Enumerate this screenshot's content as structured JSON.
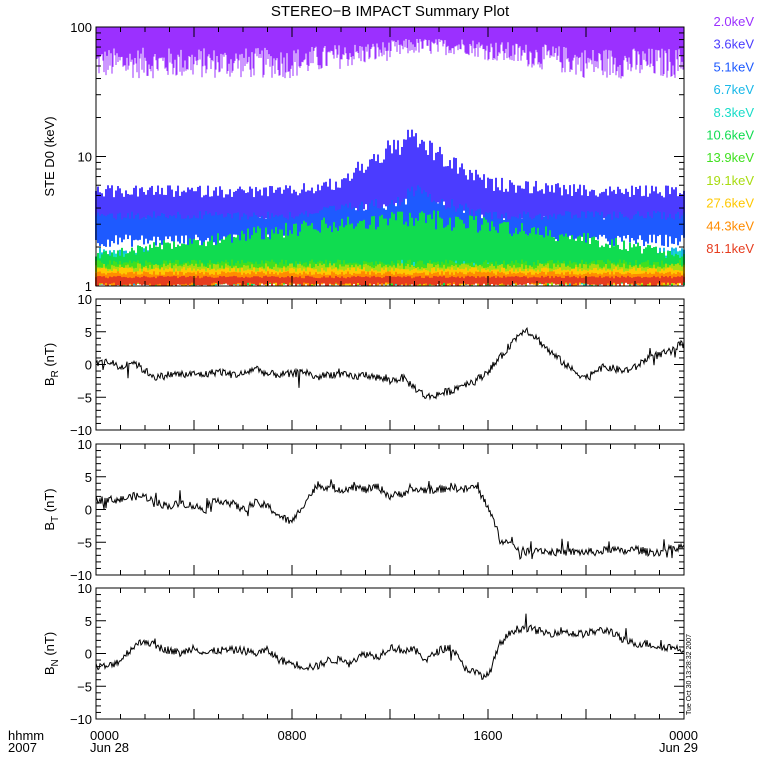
{
  "title": "STEREO−B IMPACT Summary Plot",
  "footer": {
    "left_top": "hhmm",
    "left_bottom": "2007",
    "x_ticks": [
      "0000",
      "0800",
      "1600",
      "0000"
    ],
    "x_dates": [
      "Jun 28",
      "",
      "",
      "Jun 29"
    ],
    "timestamp": "Tue Oct 30 13:28:32 2007"
  },
  "legend": [
    {
      "label": "2.0keV",
      "color": "#9b30ff"
    },
    {
      "label": "3.6keV",
      "color": "#4b3cff"
    },
    {
      "label": "5.1keV",
      "color": "#1e5aff"
    },
    {
      "label": "6.7keV",
      "color": "#18b8e8"
    },
    {
      "label": "8.3keV",
      "color": "#18dcc8"
    },
    {
      "label": "10.6keV",
      "color": "#10dc50"
    },
    {
      "label": "13.9keV",
      "color": "#40e020"
    },
    {
      "label": "19.1keV",
      "color": "#a8dc10"
    },
    {
      "label": "27.6keV",
      "color": "#ffc800"
    },
    {
      "label": "44.3keV",
      "color": "#ff8c00"
    },
    {
      "label": "81.1keV",
      "color": "#e63c1e"
    }
  ],
  "chart_data": [
    {
      "type": "line",
      "ylabel": "STE D0 (keV)",
      "yscale": "log",
      "ylim": [
        1,
        100
      ],
      "yticks": [
        "1",
        "10",
        "100"
      ],
      "xlim_hours": [
        0,
        24
      ],
      "series": [
        {
          "name": "2.0keV",
          "envelope_hours": [
            0,
            4,
            8,
            12,
            13,
            14,
            15,
            16,
            20,
            24
          ],
          "max": [
            100,
            100,
            100,
            100,
            100,
            100,
            100,
            100,
            100,
            100
          ],
          "min": [
            40,
            40,
            40,
            55,
            62,
            60,
            62,
            55,
            40,
            40
          ]
        },
        {
          "name": "3.6keV",
          "envelope_hours": [
            0,
            4,
            8,
            10,
            13,
            14,
            15,
            16,
            20,
            24
          ],
          "max": [
            6,
            6,
            6,
            7,
            17,
            12,
            9,
            7,
            6,
            6
          ],
          "min": [
            2.5,
            2.5,
            2.5,
            2.5,
            3,
            2.8,
            2.6,
            2.5,
            2.5,
            2.5
          ]
        },
        {
          "name": "5.1keV",
          "envelope_hours": [
            0,
            8,
            12.5,
            13.2,
            14,
            16,
            24
          ],
          "max": [
            3.8,
            3.8,
            5,
            7,
            5,
            3.8,
            3.8
          ],
          "min": [
            2,
            2,
            2,
            2.2,
            2,
            2,
            2
          ]
        },
        {
          "name": "6.7keV",
          "envelope_hours": [
            0,
            24
          ],
          "max": [
            2,
            2
          ],
          "min": [
            1,
            1
          ]
        },
        {
          "name": "8.3keV",
          "envelope_hours": [
            0,
            24
          ],
          "max": [
            1.9,
            1.9
          ],
          "min": [
            1,
            1
          ]
        },
        {
          "name": "10.6keV",
          "envelope_hours": [
            0,
            13,
            24
          ],
          "max": [
            1.8,
            4,
            1.8
          ],
          "min": [
            1,
            1,
            1
          ]
        },
        {
          "name": "13.9keV",
          "envelope_hours": [
            0,
            24
          ],
          "max": [
            1.6,
            1.6
          ],
          "min": [
            1,
            1
          ]
        },
        {
          "name": "19.1keV",
          "envelope_hours": [
            0,
            24
          ],
          "max": [
            1.5,
            1.5
          ],
          "min": [
            1,
            1
          ]
        },
        {
          "name": "27.6keV",
          "envelope_hours": [
            0,
            24
          ],
          "max": [
            1.4,
            1.4
          ],
          "min": [
            1,
            1
          ]
        },
        {
          "name": "44.3keV",
          "envelope_hours": [
            0,
            24
          ],
          "max": [
            1.3,
            1.3
          ],
          "min": [
            1,
            1
          ]
        },
        {
          "name": "81.1keV",
          "envelope_hours": [
            0,
            24
          ],
          "max": [
            1.2,
            1.2
          ],
          "min": [
            1,
            1
          ]
        }
      ]
    },
    {
      "type": "line",
      "ylabel": "B_R (nT)",
      "ylim": [
        -10,
        10
      ],
      "yticks": [
        "−10",
        "−5",
        "0",
        "5",
        "10"
      ],
      "xlim_hours": [
        0,
        24
      ],
      "series": [
        {
          "x_hours": [
            0,
            0.5,
            1,
            1.5,
            2,
            2.5,
            3,
            3.5,
            4,
            4.5,
            5,
            5.5,
            6,
            6.5,
            7,
            7.5,
            8,
            8.5,
            9,
            9.5,
            10,
            10.5,
            11,
            11.5,
            12,
            12.5,
            13,
            13.5,
            14,
            14.5,
            15,
            15.5,
            16,
            16.5,
            17,
            17.5,
            18,
            18.5,
            19,
            19.5,
            20,
            20.5,
            21,
            21.5,
            22,
            22.5,
            23,
            23.5,
            24
          ],
          "values": [
            0,
            0.5,
            -0.5,
            0.5,
            -1,
            -2,
            -1.5,
            -1.5,
            -1.5,
            -1.5,
            -1,
            -1.5,
            -1.5,
            -0.5,
            -1.5,
            -1.5,
            -1.5,
            -1,
            -2,
            -1.5,
            -1.5,
            -2,
            -1.5,
            -2,
            -2.5,
            -2,
            -3.5,
            -5,
            -4.5,
            -4,
            -3,
            -2.5,
            -1,
            1,
            3.5,
            5.5,
            4,
            2,
            0.5,
            -1,
            -2,
            -0.5,
            -0.5,
            -1,
            -0.5,
            1,
            1.5,
            2,
            3.5
          ]
        }
      ]
    },
    {
      "type": "line",
      "ylabel": "B_T (nT)",
      "ylim": [
        -10,
        10
      ],
      "yticks": [
        "−10",
        "−5",
        "0",
        "5",
        "10"
      ],
      "xlim_hours": [
        0,
        24
      ],
      "series": [
        {
          "x_hours": [
            0,
            0.5,
            1,
            1.5,
            2,
            2.5,
            3,
            3.5,
            4,
            4.5,
            5,
            5.5,
            6,
            6.5,
            7,
            7.5,
            8,
            8.5,
            9,
            9.5,
            10,
            10.5,
            11,
            11.5,
            12,
            12.5,
            13,
            13.5,
            14,
            14.5,
            15,
            15.5,
            16,
            16.5,
            17,
            17.5,
            18,
            18.5,
            19,
            19.5,
            20,
            20.5,
            21,
            21.5,
            22,
            22.5,
            23,
            23.5,
            24
          ],
          "values": [
            1.5,
            1.5,
            1.5,
            2,
            2,
            1,
            0.5,
            1,
            0.5,
            0,
            1.5,
            1,
            0,
            1,
            0.5,
            -1,
            -2,
            1,
            3.5,
            3.5,
            3,
            3.5,
            3,
            3.5,
            2,
            2.5,
            3,
            3,
            3,
            3.5,
            3,
            3.5,
            0.5,
            -4.5,
            -5.5,
            -6.5,
            -6,
            -6.5,
            -6.5,
            -6.5,
            -6.5,
            -6.5,
            -6,
            -6.5,
            -6,
            -6.5,
            -6.5,
            -6,
            -5.5
          ]
        }
      ]
    },
    {
      "type": "line",
      "ylabel": "B_N (nT)",
      "ylim": [
        -10,
        10
      ],
      "yticks": [
        "−10",
        "−5",
        "0",
        "5",
        "10"
      ],
      "xlim_hours": [
        0,
        24
      ],
      "series": [
        {
          "x_hours": [
            0,
            0.5,
            1,
            1.5,
            2,
            2.5,
            3,
            3.5,
            4,
            4.5,
            5,
            5.5,
            6,
            6.5,
            7,
            7.5,
            8,
            8.5,
            9,
            9.5,
            10,
            10.5,
            11,
            11.5,
            12,
            12.5,
            13,
            13.5,
            14,
            14.5,
            15,
            15.5,
            16,
            16.5,
            17,
            17.5,
            18,
            18.5,
            19,
            19.5,
            20,
            20.5,
            21,
            21.5,
            22,
            22.5,
            23,
            23.5,
            24
          ],
          "values": [
            -2,
            -2,
            -1,
            1,
            2,
            1,
            0.5,
            0,
            1,
            0,
            0.5,
            0.5,
            0.5,
            0,
            0.5,
            -1,
            -1.5,
            -2,
            -2,
            -1,
            -1,
            -1,
            0,
            -0.5,
            1,
            0.5,
            0.5,
            -1,
            0.5,
            1,
            -2,
            -3,
            -3.5,
            1.5,
            3.5,
            4,
            3.5,
            3,
            3.5,
            3,
            3,
            3.5,
            3.5,
            2,
            1.5,
            1.5,
            1,
            1,
            0.5
          ]
        }
      ]
    }
  ]
}
